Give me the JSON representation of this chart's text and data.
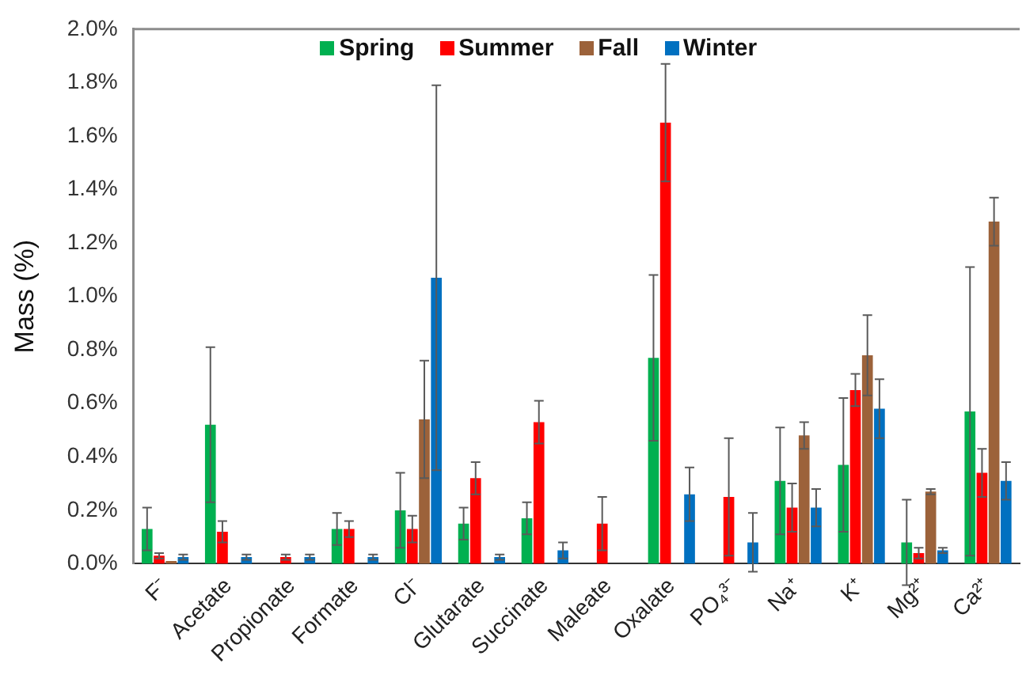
{
  "chart_data": {
    "type": "bar",
    "ylabel": "Mass (%)",
    "categories": [
      "F⁻",
      "Acetate",
      "Propionate",
      "Formate",
      "Cl⁻",
      "Glutarate",
      "Succinate",
      "Maleate",
      "Oxalate",
      "PO₄³⁻",
      "Na⁺",
      "K⁺",
      "Mg²⁺",
      "Ca²⁺"
    ],
    "series": [
      {
        "name": "Spring",
        "color": "#00b050",
        "values": [
          0.13,
          0.52,
          null,
          0.13,
          0.2,
          0.15,
          0.17,
          null,
          0.77,
          null,
          0.31,
          0.37,
          0.08,
          0.57
        ],
        "errors": [
          0.08,
          0.29,
          null,
          0.06,
          0.14,
          0.06,
          0.06,
          null,
          0.31,
          null,
          0.2,
          0.25,
          0.16,
          0.54
        ]
      },
      {
        "name": "Summer",
        "color": "#ff0000",
        "values": [
          0.03,
          0.12,
          0.025,
          0.13,
          0.13,
          0.32,
          0.53,
          0.15,
          1.65,
          0.25,
          0.21,
          0.65,
          0.04,
          0.34
        ],
        "errors": [
          0.01,
          0.04,
          0.01,
          0.03,
          0.05,
          0.06,
          0.08,
          0.1,
          0.22,
          0.22,
          0.09,
          0.06,
          0.02,
          0.09
        ]
      },
      {
        "name": "Fall",
        "color": "#9c623a",
        "values": [
          0.01,
          null,
          null,
          null,
          0.54,
          null,
          null,
          null,
          null,
          null,
          0.48,
          0.78,
          0.27,
          1.28
        ],
        "errors": [
          null,
          null,
          null,
          null,
          0.22,
          null,
          null,
          null,
          null,
          null,
          0.05,
          0.15,
          0.01,
          0.09
        ]
      },
      {
        "name": "Winter",
        "color": "#0070c0",
        "values": [
          0.025,
          0.025,
          0.025,
          0.025,
          1.07,
          0.025,
          0.05,
          null,
          0.26,
          0.08,
          0.21,
          0.58,
          0.05,
          0.31
        ],
        "errors": [
          0.01,
          0.01,
          0.01,
          0.01,
          0.72,
          0.01,
          0.03,
          null,
          0.1,
          0.11,
          0.07,
          0.11,
          0.01,
          0.07
        ]
      }
    ],
    "ylim": [
      0,
      2.0
    ],
    "yticks": [
      {
        "value": 0,
        "label": "0.0%"
      },
      {
        "value": 0.2,
        "label": "0.2%"
      },
      {
        "value": 0.4,
        "label": "0.4%"
      },
      {
        "value": 0.6,
        "label": "0.6%"
      },
      {
        "value": 0.8,
        "label": "0.8%"
      },
      {
        "value": 1.0,
        "label": "1.0%"
      },
      {
        "value": 1.2,
        "label": "1.2%"
      },
      {
        "value": 1.4,
        "label": "1.4%"
      },
      {
        "value": 1.6,
        "label": "1.6%"
      },
      {
        "value": 1.8,
        "label": "1.8%"
      },
      {
        "value": 2.0,
        "label": "2.0%"
      }
    ],
    "grid": false,
    "legend": "top"
  }
}
